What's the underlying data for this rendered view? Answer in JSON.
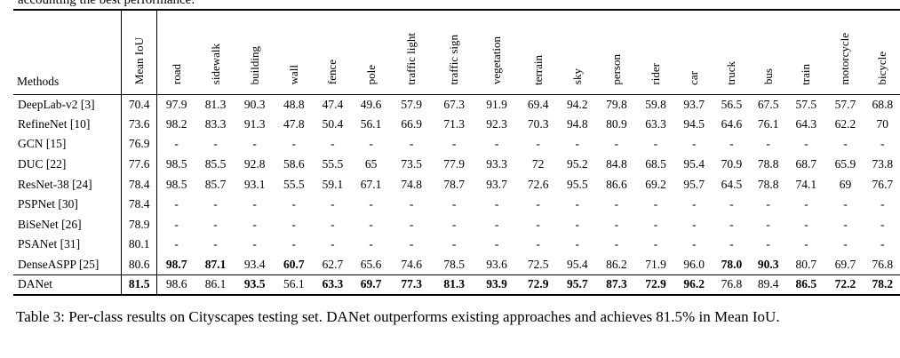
{
  "clipped_text": "accounting the best performance.",
  "columns": [
    "Methods",
    "Mean IoU",
    "road",
    "sidewalk",
    "building",
    "wall",
    "fence",
    "pole",
    "traffic light",
    "traffic sign",
    "vegetation",
    "terrain",
    "sky",
    "person",
    "rider",
    "car",
    "truck",
    "bus",
    "train",
    "motorcycle",
    "bicycle"
  ],
  "rows": [
    {
      "method": "DeepLab-v2 [3]",
      "values": [
        "70.4",
        "97.9",
        "81.3",
        "90.3",
        "48.8",
        "47.4",
        "49.6",
        "57.9",
        "67.3",
        "91.9",
        "69.4",
        "94.2",
        "79.8",
        "59.8",
        "93.7",
        "56.5",
        "67.5",
        "57.5",
        "57.7",
        "68.8"
      ],
      "bold": []
    },
    {
      "method": "RefineNet [10]",
      "values": [
        "73.6",
        "98.2",
        "83.3",
        "91.3",
        "47.8",
        "50.4",
        "56.1",
        "66.9",
        "71.3",
        "92.3",
        "70.3",
        "94.8",
        "80.9",
        "63.3",
        "94.5",
        "64.6",
        "76.1",
        "64.3",
        "62.2",
        "70"
      ],
      "bold": []
    },
    {
      "method": "GCN [15]",
      "values": [
        "76.9",
        "-",
        "-",
        "-",
        "-",
        "-",
        "-",
        "-",
        "-",
        "-",
        "-",
        "-",
        "-",
        "-",
        "-",
        "-",
        "-",
        "-",
        "-",
        "-"
      ],
      "bold": []
    },
    {
      "method": "DUC [22]",
      "values": [
        "77.6",
        "98.5",
        "85.5",
        "92.8",
        "58.6",
        "55.5",
        "65",
        "73.5",
        "77.9",
        "93.3",
        "72",
        "95.2",
        "84.8",
        "68.5",
        "95.4",
        "70.9",
        "78.8",
        "68.7",
        "65.9",
        "73.8"
      ],
      "bold": []
    },
    {
      "method": "ResNet-38 [24]",
      "values": [
        "78.4",
        "98.5",
        "85.7",
        "93.1",
        "55.5",
        "59.1",
        "67.1",
        "74.8",
        "78.7",
        "93.7",
        "72.6",
        "95.5",
        "86.6",
        "69.2",
        "95.7",
        "64.5",
        "78.8",
        "74.1",
        "69",
        "76.7"
      ],
      "bold": []
    },
    {
      "method": "PSPNet [30]",
      "values": [
        "78.4",
        "-",
        "-",
        "-",
        "-",
        "-",
        "-",
        "-",
        "-",
        "-",
        "-",
        "-",
        "-",
        "-",
        "-",
        "-",
        "-",
        "-",
        "-",
        "-"
      ],
      "bold": []
    },
    {
      "method": "BiSeNet [26]",
      "values": [
        "78.9",
        "-",
        "-",
        "-",
        "-",
        "-",
        "-",
        "-",
        "-",
        "-",
        "-",
        "-",
        "-",
        "-",
        "-",
        "-",
        "-",
        "-",
        "-",
        "-"
      ],
      "bold": []
    },
    {
      "method": "PSANet [31]",
      "values": [
        "80.1",
        "-",
        "-",
        "-",
        "-",
        "-",
        "-",
        "-",
        "-",
        "-",
        "-",
        "-",
        "-",
        "-",
        "-",
        "-",
        "-",
        "-",
        "-",
        "-"
      ],
      "bold": []
    },
    {
      "method": "DenseASPP [25]",
      "values": [
        "80.6",
        "98.7",
        "87.1",
        "93.4",
        "60.7",
        "62.7",
        "65.6",
        "74.6",
        "78.5",
        "93.6",
        "72.5",
        "95.4",
        "86.2",
        "71.9",
        "96.0",
        "78.0",
        "90.3",
        "80.7",
        "69.7",
        "76.8"
      ],
      "bold": [
        1,
        2,
        4,
        15,
        16
      ]
    },
    {
      "method": "DANet",
      "values": [
        "81.5",
        "98.6",
        "86.1",
        "93.5",
        "56.1",
        "63.3",
        "69.7",
        "77.3",
        "81.3",
        "93.9",
        "72.9",
        "95.7",
        "87.3",
        "72.9",
        "96.2",
        "76.8",
        "89.4",
        "86.5",
        "72.2",
        "78.2"
      ],
      "bold": [
        0,
        3,
        5,
        6,
        7,
        8,
        9,
        10,
        11,
        12,
        13,
        14,
        17,
        18,
        19
      ]
    }
  ],
  "caption": "Table 3: Per-class results on Cityscapes testing set. DANet outperforms existing approaches and achieves 81.5% in Mean IoU."
}
